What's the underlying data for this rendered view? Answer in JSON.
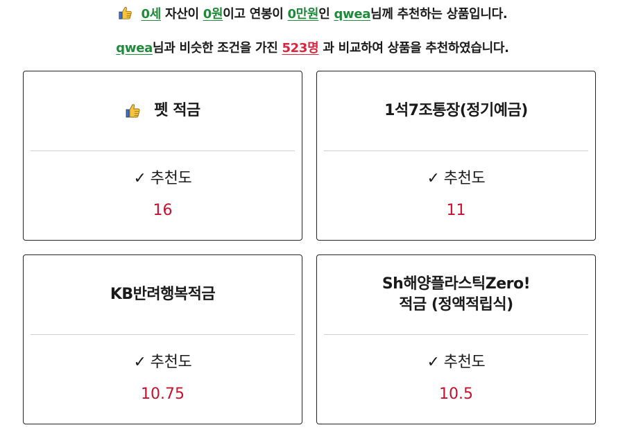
{
  "summary": {
    "age_value": "0세",
    "text_a": " 자산이 ",
    "asset_value": "0원",
    "text_b": "이고 연봉이 ",
    "salary_value": "0만원",
    "text_c": "인 ",
    "user_name": "qwea",
    "text_d": "님께 추천하는 상품입니다.",
    "icon": "thumbs-up-icon"
  },
  "comparison": {
    "user_name": "qwea",
    "text_a": "님과 비슷한 조건을 가진 ",
    "count": "523명",
    "text_b": " 과 비교하여 상품을 추천하였습니다."
  },
  "products": [
    {
      "name": "펫 적금",
      "rec_label": "추천도",
      "score": "16",
      "top_pick": true
    },
    {
      "name": "1석7조통장(정기예금)",
      "rec_label": "추천도",
      "score": "11",
      "top_pick": false
    },
    {
      "name": "KB반려행복적금",
      "rec_label": "추천도",
      "score": "10.75",
      "top_pick": false
    },
    {
      "name_line1": "Sh해양플라스틱Zero!",
      "name_line2": "적금 (정액적립식)",
      "rec_label": "추천도",
      "score": "10.5",
      "top_pick": false
    }
  ],
  "check_glyph": "✓",
  "colors": {
    "highlight_green": "#1e8a3a",
    "highlight_red": "#d8263c",
    "score_red": "#c8102e",
    "thumb_yellow": "#f5c542"
  }
}
